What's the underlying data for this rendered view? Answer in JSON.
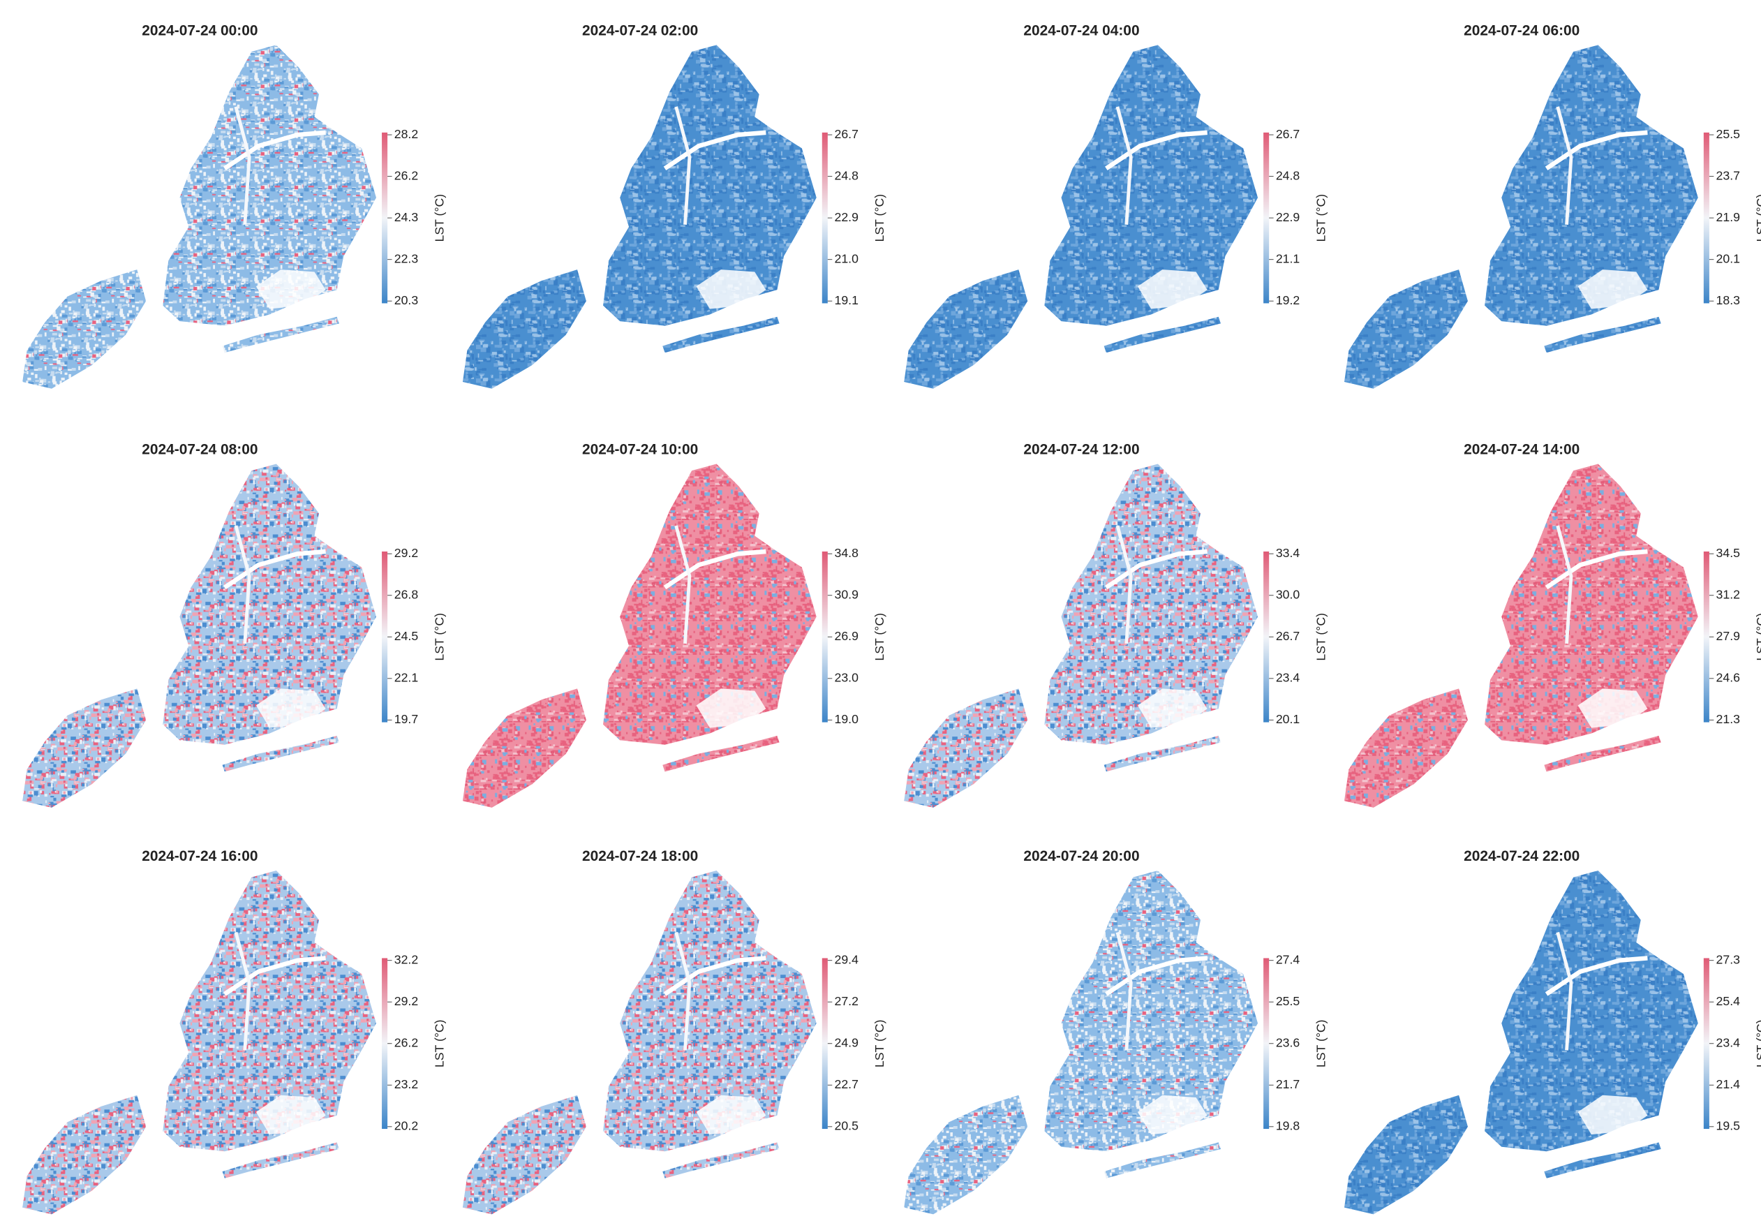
{
  "panels": [
    {
      "title": "2024-07-24 00:00",
      "colorbar": {
        "label": "LST (°C)",
        "ticks": [
          "28.2",
          "26.2",
          "24.3",
          "22.3",
          "20.3"
        ]
      }
    },
    {
      "title": "2024-07-24 02:00",
      "colorbar": {
        "label": "LST (°C)",
        "ticks": [
          "26.7",
          "24.8",
          "22.9",
          "21.0",
          "19.1"
        ]
      }
    },
    {
      "title": "2024-07-24 04:00",
      "colorbar": {
        "label": "LST (°C)",
        "ticks": [
          "26.7",
          "24.8",
          "22.9",
          "21.1",
          "19.2"
        ]
      }
    },
    {
      "title": "2024-07-24 06:00",
      "colorbar": {
        "label": "LST (°C)",
        "ticks": [
          "25.5",
          "23.7",
          "21.9",
          "20.1",
          "18.3"
        ]
      }
    },
    {
      "title": "2024-07-24 08:00",
      "colorbar": {
        "label": "LST (°C)",
        "ticks": [
          "29.2",
          "26.8",
          "24.5",
          "22.1",
          "19.7"
        ]
      }
    },
    {
      "title": "2024-07-24 10:00",
      "colorbar": {
        "label": "LST (°C)",
        "ticks": [
          "34.8",
          "30.9",
          "26.9",
          "23.0",
          "19.0"
        ]
      }
    },
    {
      "title": "2024-07-24 12:00",
      "colorbar": {
        "label": "LST (°C)",
        "ticks": [
          "33.4",
          "30.0",
          "26.7",
          "23.4",
          "20.1"
        ]
      }
    },
    {
      "title": "2024-07-24 14:00",
      "colorbar": {
        "label": "LST (°C)",
        "ticks": [
          "34.5",
          "31.2",
          "27.9",
          "24.6",
          "21.3"
        ]
      }
    },
    {
      "title": "2024-07-24 16:00",
      "colorbar": {
        "label": "LST (°C)",
        "ticks": [
          "32.2",
          "29.2",
          "26.2",
          "23.2",
          "20.2"
        ]
      }
    },
    {
      "title": "2024-07-24 18:00",
      "colorbar": {
        "label": "LST (°C)",
        "ticks": [
          "29.4",
          "27.2",
          "24.9",
          "22.7",
          "20.5"
        ]
      }
    },
    {
      "title": "2024-07-24 20:00",
      "colorbar": {
        "label": "LST (°C)",
        "ticks": [
          "27.4",
          "25.5",
          "23.6",
          "21.7",
          "19.8"
        ]
      }
    },
    {
      "title": "2024-07-24 22:00",
      "colorbar": {
        "label": "LST (°C)",
        "ticks": [
          "27.3",
          "25.4",
          "23.4",
          "21.4",
          "19.5"
        ]
      }
    }
  ]
}
